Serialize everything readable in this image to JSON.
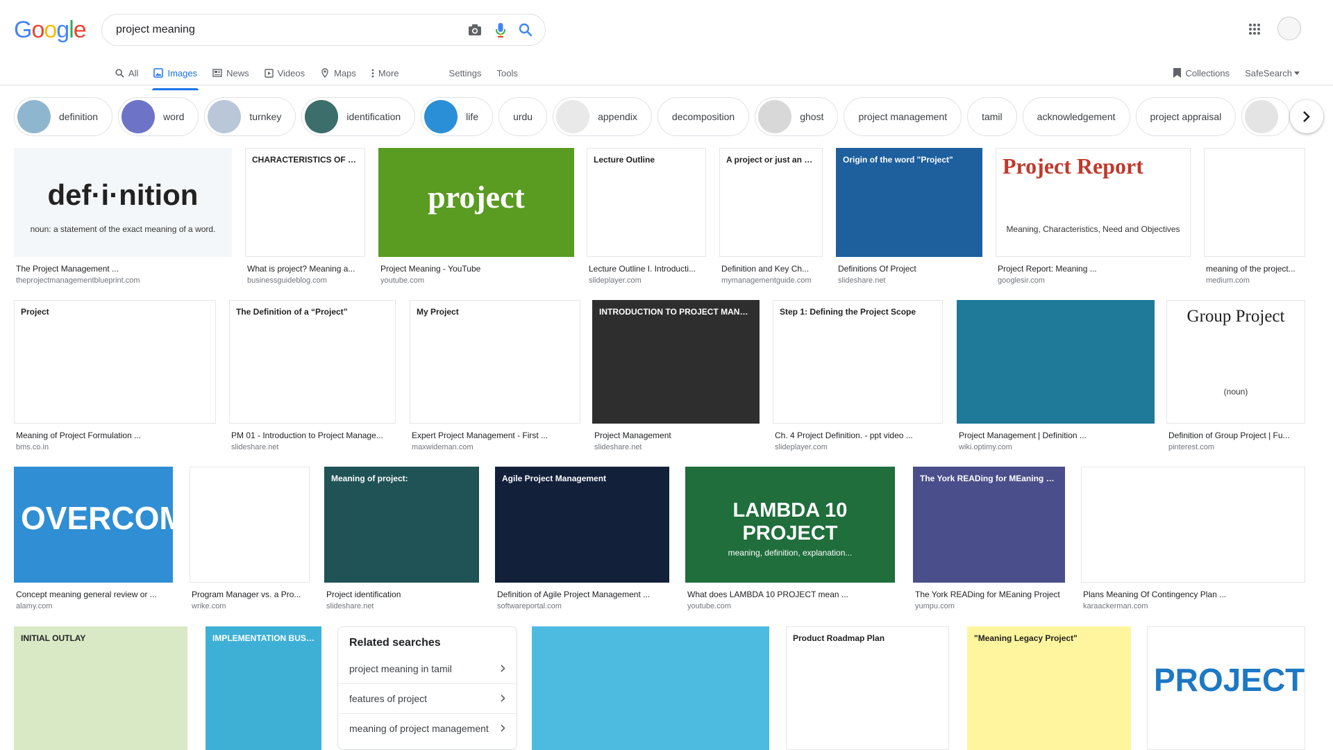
{
  "logo": {
    "letters": [
      "G",
      "o",
      "o",
      "g",
      "l",
      "e"
    ],
    "colors": [
      "#4285f4",
      "#ea4335",
      "#fbbc05",
      "#4285f4",
      "#34a853",
      "#ea4335"
    ]
  },
  "search": {
    "query": "project meaning"
  },
  "tabs": [
    {
      "label": "All",
      "icon": "search-icon"
    },
    {
      "label": "Images",
      "icon": "image-icon",
      "active": true
    },
    {
      "label": "News",
      "icon": "news-icon"
    },
    {
      "label": "Videos",
      "icon": "video-icon"
    },
    {
      "label": "Maps",
      "icon": "map-icon"
    },
    {
      "label": "More",
      "icon": "more-vert-icon"
    }
  ],
  "tools": {
    "settings": "Settings",
    "tools": "Tools",
    "collections": "Collections",
    "safesearch": "SafeSearch"
  },
  "chips": [
    {
      "label": "definition",
      "thumb": "#8fb6cf"
    },
    {
      "label": "word",
      "thumb": "#6d74c8"
    },
    {
      "label": "turnkey",
      "thumb": "#b9c7d9"
    },
    {
      "label": "identification",
      "thumb": "#3c6e6b"
    },
    {
      "label": "life",
      "thumb": "#2a8fd6"
    },
    {
      "label": "urdu"
    },
    {
      "label": "appendix",
      "thumb": "#e9e9e9"
    },
    {
      "label": "decomposition"
    },
    {
      "label": "ghost",
      "thumb": "#d8d8d8"
    },
    {
      "label": "project management"
    },
    {
      "label": "tamil"
    },
    {
      "label": "acknowledgement"
    },
    {
      "label": "project appraisal"
    },
    {
      "label": "",
      "thumb": "#e4e4e4"
    }
  ],
  "results": [
    {
      "title": "The Project Management ...",
      "src": "theprojectmanagementblueprint.com",
      "bg": "#f4f7f9",
      "caption": "def·i·nition",
      "sub": "noun: a statement of the exact meaning of a word."
    },
    {
      "title": "What is project? Meaning a...",
      "src": "businessguideblog.com",
      "bg": "#ffffff",
      "caption": "CHARACTERISTICS OF PROJECT"
    },
    {
      "title": "Project Meaning - YouTube",
      "src": "youtube.com",
      "bg": "#5a9b22",
      "caption": "project"
    },
    {
      "title": "Lecture Outline I. Introducti...",
      "src": "slideplayer.com",
      "bg": "#ffffff",
      "caption": "Lecture Outline"
    },
    {
      "title": "Definition and Key Ch...",
      "src": "mymanagementguide.com",
      "bg": "#ffffff",
      "caption": "A project or just an activity?"
    },
    {
      "title": "Definitions Of Project",
      "src": "slideshare.net",
      "bg": "#1e5f9e",
      "caption": "Origin of the word \"Project\""
    },
    {
      "title": "Project Report: Meaning ...",
      "src": "googlesir.com",
      "bg": "#ffffff",
      "caption": "Project Report",
      "sub": "Meaning, Characteristics, Need and Objectives"
    },
    {
      "title": "meaning of the project...",
      "src": "medium.com",
      "bg": "#ffffff",
      "caption": ""
    },
    {
      "title": "Meaning of Project Formulation ...",
      "src": "bms.co.in",
      "bg": "#ffffff",
      "caption": "Project"
    },
    {
      "title": "PM 01 - Introduction to Project Manage...",
      "src": "slideshare.net",
      "bg": "#ffffff",
      "caption": "The Definition of a “Project”"
    },
    {
      "title": "Expert Project Management - First ...",
      "src": "maxwideman.com",
      "bg": "#ffffff",
      "caption": "My Project"
    },
    {
      "title": "Project Management",
      "src": "slideshare.net",
      "bg": "#2e2e2e",
      "caption": "INTRODUCTION TO PROJECT MANAGEMENT"
    },
    {
      "title": "Ch. 4 Project Definition. - ppt video ...",
      "src": "slideplayer.com",
      "bg": "#ffffff",
      "caption": "Step 1: Defining the Project Scope"
    },
    {
      "title": "Project Management | Definition ...",
      "src": "wiki.optimy.com",
      "bg": "#1f7a99",
      "caption": ""
    },
    {
      "title": "Definition of Group Project | Fu...",
      "src": "pinterest.com",
      "bg": "#ffffff",
      "caption": "Group Project",
      "sub": "(noun)"
    },
    {
      "title": "Concept meaning general review or ...",
      "src": "alamy.com",
      "bg": "#2f8ed4",
      "caption": "OVERCOME"
    },
    {
      "title": "Program Manager vs. a Pro...",
      "src": "wrike.com",
      "bg": "#ffffff",
      "caption": ""
    },
    {
      "title": "Project identification",
      "src": "slideshare.net",
      "bg": "#1f5355",
      "caption": "Meaning of project:"
    },
    {
      "title": "Definition of Agile Project Management ...",
      "src": "softwareportal.com",
      "bg": "#12203a",
      "caption": "Agile Project Management"
    },
    {
      "title": "What does LAMBDA 10 PROJECT mean ...",
      "src": "youtube.com",
      "bg": "#1f6e3c",
      "caption": "LAMBDA 10 PROJECT",
      "sub": "meaning, definition, explanation..."
    },
    {
      "title": "The York READing for MEaning Project",
      "src": "yumpu.com",
      "bg": "#4a4e8a",
      "caption": "The York READing for MEaning Project"
    },
    {
      "title": "Plans Meaning Of Contingency Plan ...",
      "src": "karaackerman.com",
      "bg": "#ffffff",
      "caption": ""
    },
    {
      "title": "",
      "src": "",
      "bg": "#d9e9c6",
      "caption": "INITIAL OUTLAY"
    },
    {
      "title": "",
      "src": "",
      "bg": "#3eb0d6",
      "caption": "IMPLEMENTATION BUSINESS PROJECT"
    },
    {
      "title": "",
      "src": "",
      "bg": "#4dbbe0",
      "caption": ""
    },
    {
      "title": "",
      "src": "",
      "bg": "#ffffff",
      "caption": "Product Roadmap Plan"
    },
    {
      "title": "",
      "src": "",
      "bg": "#fff59e",
      "caption": "\"Meaning Legacy Project\""
    },
    {
      "title": "",
      "src": "",
      "bg": "#ffffff",
      "caption": "PROJECT"
    }
  ],
  "related": {
    "heading": "Related searches",
    "items": [
      "project meaning in tamil",
      "features of project",
      "meaning of project management"
    ]
  }
}
